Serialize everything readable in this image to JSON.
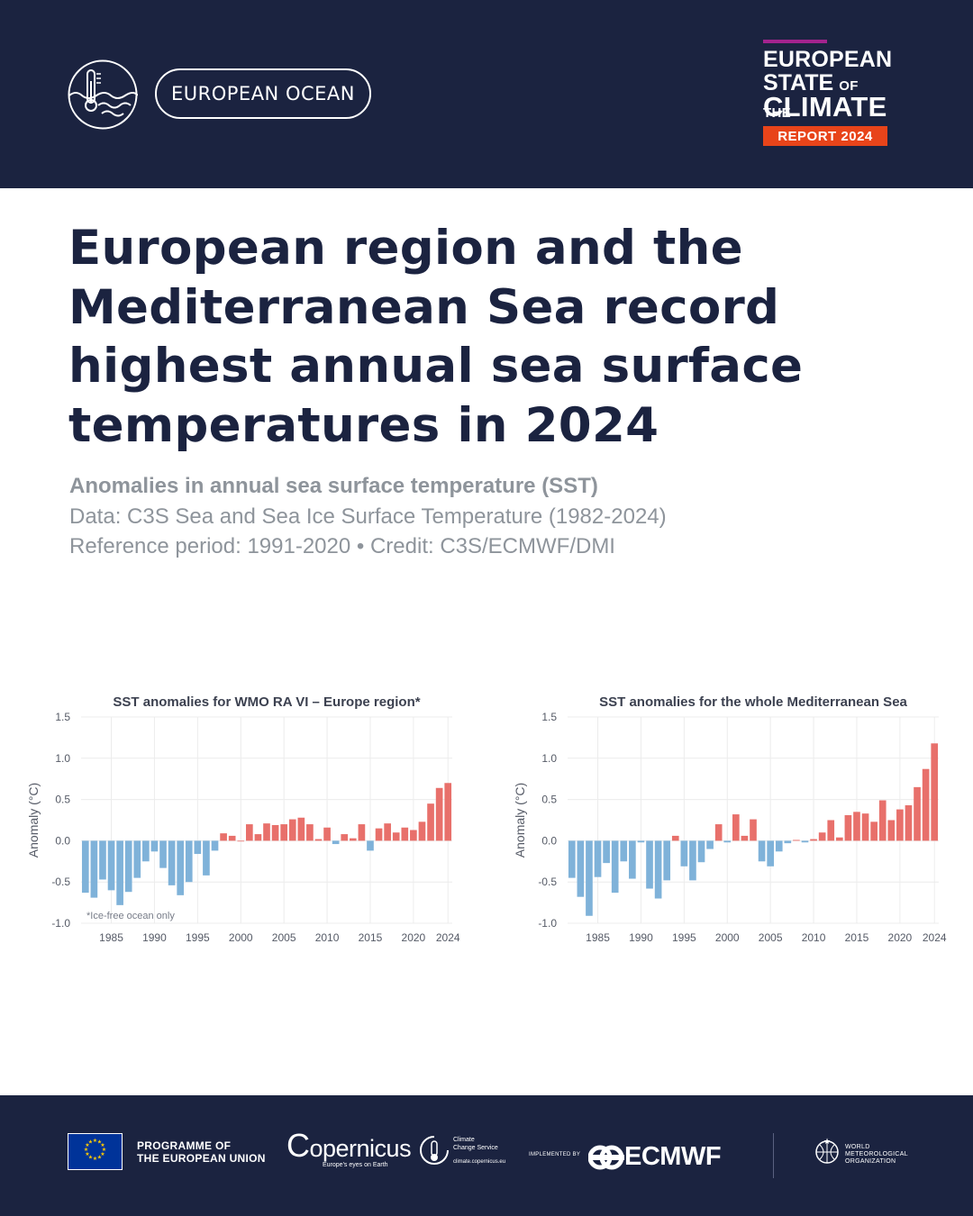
{
  "header": {
    "section_label": "EUROPEAN OCEAN",
    "report_logo": {
      "line1": "EUROPEAN",
      "line2": "STATE",
      "line2_small": "OF THE",
      "line3": "CLIMATE",
      "badge": "REPORT 2024"
    }
  },
  "headline": {
    "line1": "European region and the",
    "line2": "Mediterranean Sea record",
    "line3": "highest annual sea surface",
    "line4": "temperatures in 2024"
  },
  "subtitle": "Anomalies in annual sea surface temperature (SST)",
  "meta": {
    "data_source": "Data: C3S Sea and Sea Ice Surface Temperature (1982-2024)",
    "reference": "Reference period: 1991-2020 • Credit: C3S/ECMWF/DMI"
  },
  "chart_data": [
    {
      "type": "bar",
      "title": "SST anomalies for WMO RA VI – Europe region*",
      "ylabel": "Anomaly (°C)",
      "xlabel": "",
      "ylim": [
        -1.0,
        1.5
      ],
      "yticks": [
        1.5,
        1.0,
        0.5,
        0.0,
        -0.5,
        -1.0
      ],
      "ytick_labels": [
        "1.5",
        "1.0",
        "0.5",
        "0.0",
        "-0.5",
        "-1.0"
      ],
      "xticks": [
        1985,
        1990,
        1995,
        2000,
        2005,
        2010,
        2015,
        2020,
        2024
      ],
      "xtick_labels": [
        "1985",
        "1990",
        "1995",
        "2000",
        "2005",
        "2010",
        "2015",
        "2020",
        "2024"
      ],
      "grid": true,
      "annotation": "*Ice-free ocean only",
      "positive_color": "#e8706b",
      "negative_color": "#7fb2d9",
      "x": [
        1982,
        1983,
        1984,
        1985,
        1986,
        1987,
        1988,
        1989,
        1990,
        1991,
        1992,
        1993,
        1994,
        1995,
        1996,
        1997,
        1998,
        1999,
        2000,
        2001,
        2002,
        2003,
        2004,
        2005,
        2006,
        2007,
        2008,
        2009,
        2010,
        2011,
        2012,
        2013,
        2014,
        2015,
        2016,
        2017,
        2018,
        2019,
        2020,
        2021,
        2022,
        2023,
        2024
      ],
      "values": [
        -0.63,
        -0.69,
        -0.47,
        -0.6,
        -0.78,
        -0.62,
        -0.45,
        -0.25,
        -0.13,
        -0.33,
        -0.54,
        -0.66,
        -0.5,
        -0.16,
        -0.42,
        -0.12,
        0.09,
        0.06,
        0.0,
        0.2,
        0.08,
        0.21,
        0.19,
        0.2,
        0.26,
        0.28,
        0.2,
        0.02,
        0.16,
        -0.04,
        0.08,
        0.03,
        0.2,
        -0.12,
        0.15,
        0.21,
        0.1,
        0.16,
        0.13,
        0.23,
        0.45,
        0.64,
        0.7
      ]
    },
    {
      "type": "bar",
      "title": "SST anomalies for the whole Mediterranean Sea",
      "ylabel": "Anomaly (°C)",
      "xlabel": "",
      "ylim": [
        -1.0,
        1.5
      ],
      "yticks": [
        1.5,
        1.0,
        0.5,
        0.0,
        -0.5,
        -1.0
      ],
      "ytick_labels": [
        "1.5",
        "1.0",
        "0.5",
        "0.0",
        "-0.5",
        "-1.0"
      ],
      "xticks": [
        1985,
        1990,
        1995,
        2000,
        2005,
        2010,
        2015,
        2020,
        2024
      ],
      "xtick_labels": [
        "1985",
        "1990",
        "1995",
        "2000",
        "2005",
        "2010",
        "2015",
        "2020",
        "2024"
      ],
      "grid": true,
      "annotation": "",
      "positive_color": "#e8706b",
      "negative_color": "#7fb2d9",
      "x": [
        1982,
        1983,
        1984,
        1985,
        1986,
        1987,
        1988,
        1989,
        1990,
        1991,
        1992,
        1993,
        1994,
        1995,
        1996,
        1997,
        1998,
        1999,
        2000,
        2001,
        2002,
        2003,
        2004,
        2005,
        2006,
        2007,
        2008,
        2009,
        2010,
        2011,
        2012,
        2013,
        2014,
        2015,
        2016,
        2017,
        2018,
        2019,
        2020,
        2021,
        2022,
        2023,
        2024
      ],
      "values": [
        -0.45,
        -0.68,
        -0.91,
        -0.44,
        -0.27,
        -0.63,
        -0.25,
        -0.46,
        -0.02,
        -0.58,
        -0.7,
        -0.48,
        0.06,
        -0.31,
        -0.48,
        -0.26,
        -0.1,
        0.2,
        -0.02,
        0.32,
        0.06,
        0.26,
        -0.25,
        -0.31,
        -0.13,
        -0.03,
        0.01,
        -0.02,
        0.02,
        0.1,
        0.25,
        0.04,
        0.31,
        0.35,
        0.33,
        0.23,
        0.49,
        0.25,
        0.38,
        0.43,
        0.65,
        0.87,
        1.18
      ]
    }
  ],
  "footer": {
    "eu_line1": "PROGRAMME OF",
    "eu_line2": "THE EUROPEAN UNION",
    "copernicus_word": "opernicus",
    "copernicus_c": "C",
    "copernicus_tagline": "Europe's eyes on Earth",
    "c3s_line1": "Climate",
    "c3s_line2": "Change Service",
    "c3s_url": "climate.copernicus.eu",
    "implemented_by": "IMPLEMENTED BY",
    "ecmwf": "ECMWF",
    "wmo_line1": "WORLD",
    "wmo_line2": "METEOROLOGICAL",
    "wmo_line3": "ORGANIZATION"
  }
}
